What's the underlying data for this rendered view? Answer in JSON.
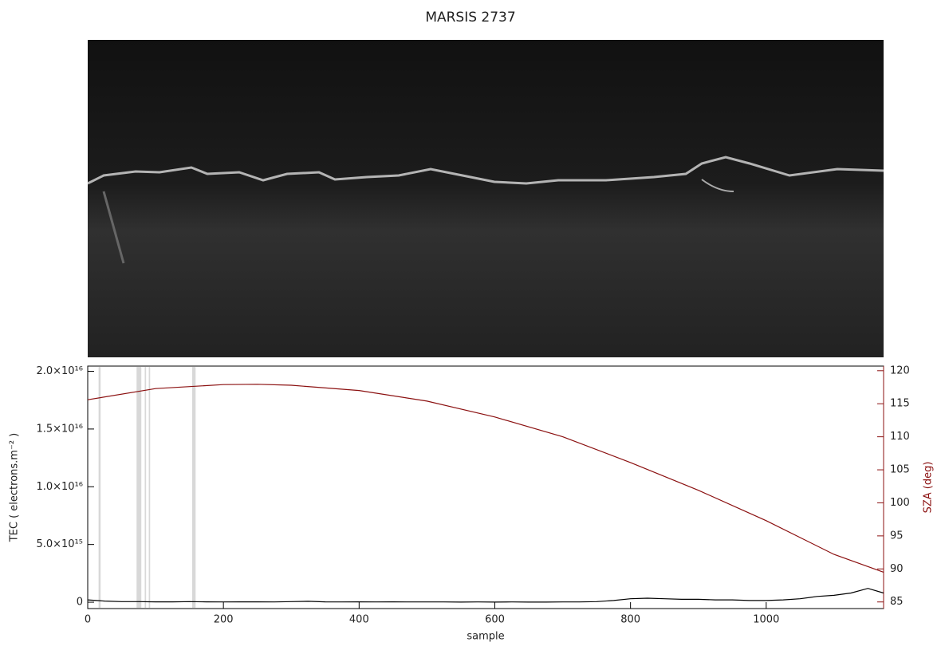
{
  "chart_data": {
    "type": "line",
    "title": "MARSIS 2737",
    "x_label": "sample",
    "y_label": "TEC ( electrons.m⁻² )",
    "y2_label": "SZA (deg)",
    "xlim": [
      0,
      1173
    ],
    "xticks": [
      0,
      200,
      400,
      600,
      800,
      1000
    ],
    "ylim": [
      -550000000000000.0,
      2.045e+16
    ],
    "yticks": [
      0,
      {
        "value": 5000000000000000.0,
        "label": "5.0×10¹⁵"
      },
      {
        "value": 1e+16,
        "label": "1.0×10¹⁶"
      },
      {
        "value": 1.5e+16,
        "label": "1.5×10¹⁶"
      },
      {
        "value": 2e+16,
        "label": "2.0×10¹⁶"
      }
    ],
    "y2lim": [
      84.0,
      120.7
    ],
    "y2ticks": [
      85,
      90,
      95,
      100,
      105,
      110,
      115,
      120
    ],
    "y2_color": "#8b1010",
    "gap_color": "#d8d8d8",
    "gap_bands": [
      [
        16,
        19
      ],
      [
        72,
        79
      ],
      [
        84,
        86
      ],
      [
        90,
        92
      ],
      [
        154,
        159
      ]
    ],
    "series": [
      {
        "color": "#000000",
        "x": [
          0,
          25,
          50,
          75,
          100,
          125,
          150,
          175,
          200,
          225,
          250,
          275,
          300,
          325,
          350,
          375,
          400,
          425,
          450,
          475,
          500,
          525,
          550,
          575,
          600,
          625,
          650,
          675,
          700,
          725,
          750,
          775,
          800,
          825,
          850,
          875,
          900,
          925,
          950,
          975,
          1000,
          1025,
          1050,
          1075,
          1100,
          1125,
          1150,
          1173
        ],
        "values": [
          200000000000000.0,
          100000000000000.0,
          50000000000000.0,
          50000000000000.0,
          30000000000000.0,
          30000000000000.0,
          50000000000000.0,
          30000000000000.0,
          20000000000000.0,
          30000000000000.0,
          30000000000000.0,
          20000000000000.0,
          50000000000000.0,
          80000000000000.0,
          30000000000000.0,
          20000000000000.0,
          30000000000000.0,
          20000000000000.0,
          30000000000000.0,
          20000000000000.0,
          20000000000000.0,
          20000000000000.0,
          10000000000000.0,
          20000000000000.0,
          10000000000000.0,
          20000000000000.0,
          10000000000000.0,
          10000000000000.0,
          20000000000000.0,
          20000000000000.0,
          50000000000000.0,
          150000000000000.0,
          300000000000000.0,
          350000000000000.0,
          300000000000000.0,
          250000000000000.0,
          250000000000000.0,
          200000000000000.0,
          200000000000000.0,
          150000000000000.0,
          150000000000000.0,
          200000000000000.0,
          300000000000000.0,
          500000000000000.0,
          600000000000000.0,
          800000000000000.0,
          1200000000000000.0,
          800000000000000.0
        ]
      },
      {
        "color": "#8b1010",
        "axis": "y2",
        "x": [
          0,
          100,
          200,
          250,
          300,
          400,
          500,
          600,
          700,
          800,
          900,
          1000,
          1100,
          1173
        ],
        "values": [
          115.6,
          117.3,
          117.9,
          117.95,
          117.8,
          117.0,
          115.4,
          113.0,
          110.0,
          106.1,
          101.9,
          97.3,
          92.2,
          89.5
        ]
      }
    ]
  }
}
